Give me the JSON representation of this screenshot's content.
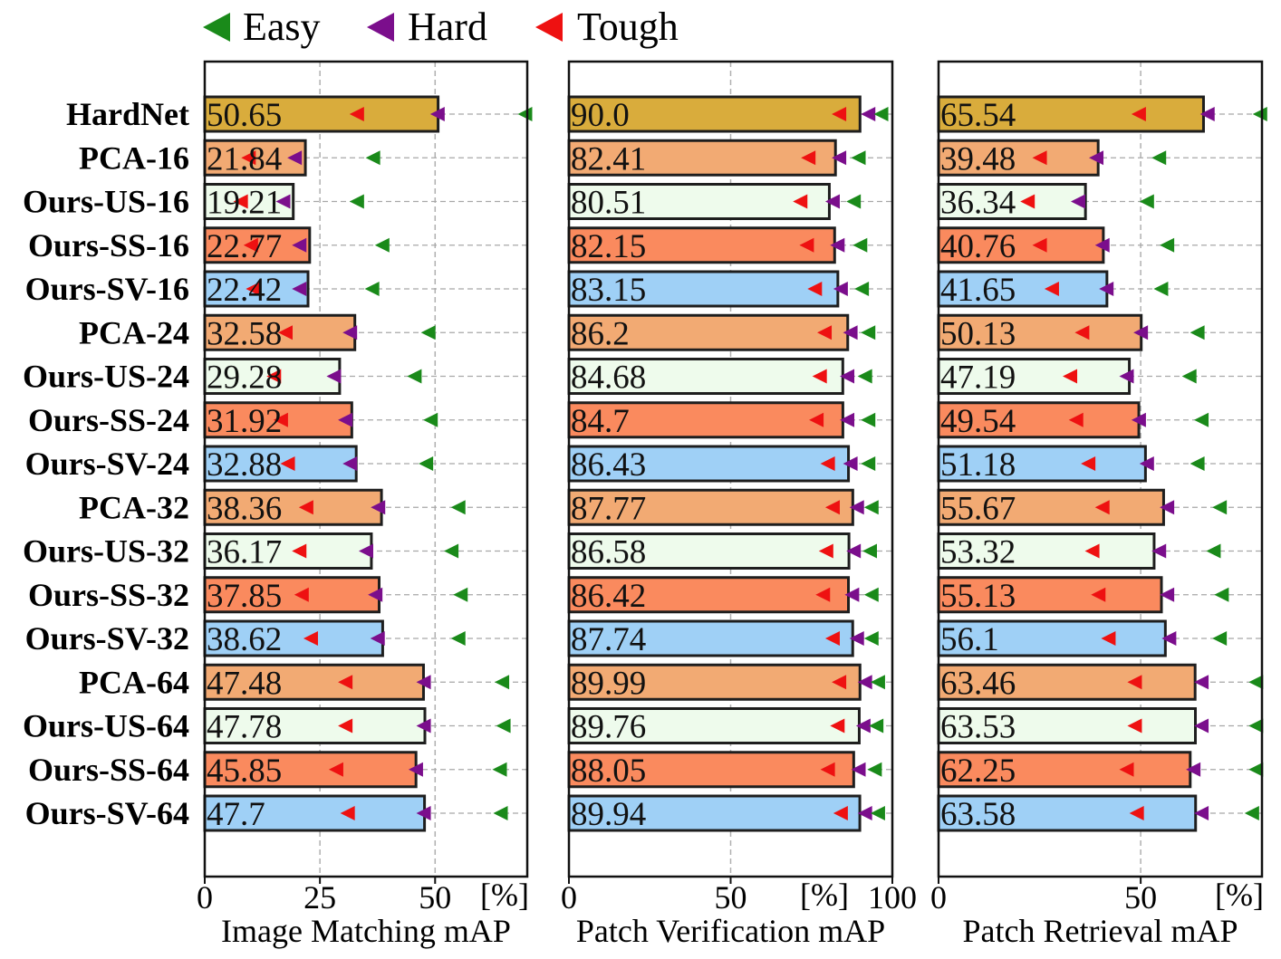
{
  "legend": [
    {
      "label": "Easy",
      "color": "#1a8a1a"
    },
    {
      "label": "Hard",
      "color": "#7b0e8c"
    },
    {
      "label": "Tough",
      "color": "#ee1111"
    }
  ],
  "colors": {
    "hardnet": "#d9ac3c",
    "pca": "#f2aa73",
    "us": "#eefbec",
    "ss": "#fa8a5e",
    "sv": "#9fd0f6"
  },
  "chart_data": [
    {
      "type": "bar",
      "id": "image-matching",
      "xlabel": "Image Matching mAP",
      "unit_label": "[%]",
      "xlim": [
        0,
        70
      ],
      "ticks": [
        0,
        25,
        50
      ],
      "grid": true,
      "categories": [
        "HardNet",
        "PCA-16",
        "Ours-US-16",
        "Ours-SS-16",
        "Ours-SV-16",
        "PCA-24",
        "Ours-US-24",
        "Ours-SS-24",
        "Ours-SV-24",
        "PCA-32",
        "Ours-US-32",
        "Ours-SS-32",
        "Ours-SV-32",
        "PCA-64",
        "Ours-US-64",
        "Ours-SS-64",
        "Ours-SV-64"
      ],
      "values": [
        50.65,
        21.84,
        19.21,
        22.77,
        22.42,
        32.58,
        29.28,
        31.92,
        32.88,
        38.36,
        36.17,
        37.85,
        38.62,
        47.48,
        47.78,
        45.85,
        47.7
      ],
      "value_labels": [
        "50.65",
        "21.84",
        "19.21",
        "22.77",
        "22.42",
        "32.58",
        "29.28",
        "31.92",
        "32.88",
        "38.36",
        "36.17",
        "37.85",
        "38.62",
        "47.48",
        "47.78",
        "45.85",
        "47.7"
      ],
      "easy": [
        69.5,
        36.5,
        33.0,
        38.5,
        36.3,
        48.5,
        45.5,
        49.0,
        48.0,
        55.0,
        53.5,
        55.5,
        55.0,
        64.5,
        64.8,
        64.0,
        64.2
      ],
      "hard": [
        50.5,
        19.5,
        17.0,
        20.5,
        20.5,
        31.5,
        28.0,
        30.5,
        31.5,
        37.6,
        35.0,
        37.0,
        37.5,
        47.5,
        47.5,
        45.8,
        47.5
      ],
      "tough": [
        33.0,
        9.5,
        7.8,
        10.0,
        10.5,
        17.5,
        15.0,
        16.5,
        18.0,
        22.0,
        20.5,
        21.0,
        23.0,
        30.5,
        30.5,
        28.5,
        31.0
      ]
    },
    {
      "type": "bar",
      "id": "patch-verification",
      "xlabel": "Patch Verification mAP",
      "unit_label": "[%]",
      "xlim": [
        0,
        100
      ],
      "ticks": [
        0,
        50,
        100
      ],
      "grid": true,
      "categories": [
        "HardNet",
        "PCA-16",
        "Ours-US-16",
        "Ours-SS-16",
        "Ours-SV-16",
        "PCA-24",
        "Ours-US-24",
        "Ours-SS-24",
        "Ours-SV-24",
        "PCA-32",
        "Ours-US-32",
        "Ours-SS-32",
        "Ours-SV-32",
        "PCA-64",
        "Ours-US-64",
        "Ours-SS-64",
        "Ours-SV-64"
      ],
      "values": [
        90.0,
        82.41,
        80.51,
        82.15,
        83.15,
        86.2,
        84.68,
        84.7,
        86.43,
        87.77,
        86.58,
        86.42,
        87.74,
        89.99,
        89.76,
        88.05,
        89.94
      ],
      "value_labels": [
        "90.0",
        "82.41",
        "80.51",
        "82.15",
        "83.15",
        "86.2",
        "84.68",
        "84.7",
        "86.43",
        "87.77",
        "86.58",
        "86.42",
        "87.74",
        "89.99",
        "89.76",
        "88.05",
        "89.94"
      ],
      "easy": [
        96.5,
        89.5,
        88.0,
        90.0,
        90.5,
        92.5,
        91.5,
        92.5,
        92.5,
        93.5,
        93.0,
        93.5,
        93.5,
        95.5,
        95.0,
        94.5,
        95.5
      ],
      "hard": [
        92.5,
        83.5,
        81.5,
        83.0,
        84.0,
        87.0,
        86.0,
        86.0,
        87.0,
        89.0,
        88.0,
        87.5,
        89.0,
        91.5,
        91.0,
        89.5,
        91.5
      ],
      "tough": [
        83.5,
        74.0,
        71.5,
        73.5,
        76.0,
        79.0,
        77.5,
        76.5,
        80.0,
        81.5,
        79.5,
        78.5,
        81.5,
        83.5,
        83.0,
        80.0,
        84.0
      ]
    },
    {
      "type": "bar",
      "id": "patch-retrieval",
      "xlabel": "Patch Retrieval mAP",
      "unit_label": "[%]",
      "xlim": [
        0,
        80
      ],
      "ticks": [
        0,
        50
      ],
      "grid": true,
      "categories": [
        "HardNet",
        "PCA-16",
        "Ours-US-16",
        "Ours-SS-16",
        "Ours-SV-16",
        "PCA-24",
        "Ours-US-24",
        "Ours-SS-24",
        "Ours-SV-24",
        "PCA-32",
        "Ours-US-32",
        "Ours-SS-32",
        "Ours-SV-32",
        "PCA-64",
        "Ours-US-64",
        "Ours-SS-64",
        "Ours-SV-64"
      ],
      "values": [
        65.54,
        39.48,
        36.34,
        40.76,
        41.65,
        50.13,
        47.19,
        49.54,
        51.18,
        55.67,
        53.32,
        55.13,
        56.1,
        63.46,
        63.53,
        62.25,
        63.58
      ],
      "value_labels": [
        "65.54",
        "39.48",
        "36.34",
        "40.76",
        "41.65",
        "50.13",
        "47.19",
        "49.54",
        "51.18",
        "55.67",
        "53.32",
        "55.13",
        "56.1",
        "63.46",
        "63.53",
        "62.25",
        "63.58"
      ],
      "easy": [
        79.5,
        54.5,
        51.5,
        56.5,
        55.0,
        64.0,
        62.0,
        65.0,
        64.0,
        69.5,
        68.0,
        70.0,
        69.5,
        78.5,
        78.5,
        78.5,
        77.5
      ],
      "hard": [
        66.5,
        39.0,
        34.5,
        40.5,
        41.5,
        50.0,
        46.5,
        49.5,
        51.5,
        56.5,
        54.5,
        56.5,
        57.0,
        65.0,
        65.0,
        63.0,
        65.0
      ],
      "tough": [
        49.5,
        25.0,
        22.0,
        25.0,
        28.0,
        35.5,
        32.5,
        34.0,
        37.0,
        40.5,
        38.0,
        39.5,
        42.0,
        48.5,
        48.5,
        46.5,
        49.0
      ]
    }
  ]
}
